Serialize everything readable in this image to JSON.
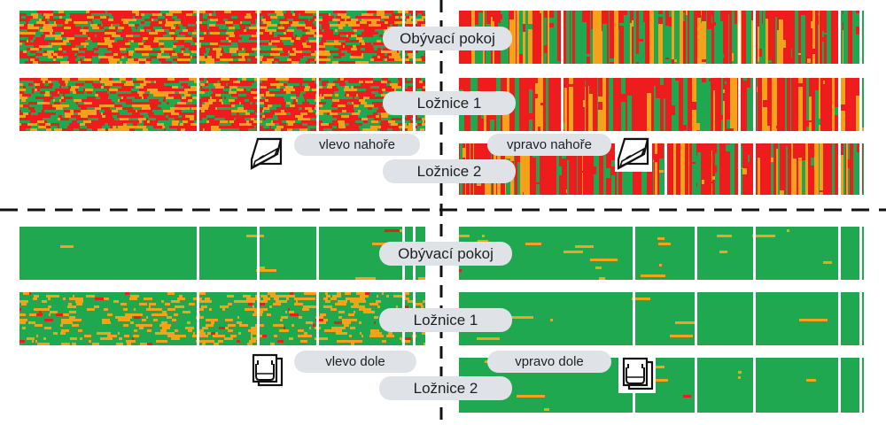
{
  "colors": {
    "good": "#1fa84f",
    "medium": "#f5a21a",
    "bad": "#ee1c1c",
    "label_bg": "#dfe3e7"
  },
  "icons": {
    "tilted_window": "tilted-window-icon",
    "open_window": "open-window-icon"
  },
  "labels": {
    "top_living": "Obývací pokoj",
    "top_bedroom1": "Ložnice 1",
    "top_bedroom2": "Ložnice 2",
    "top_left": "vlevo nahoře",
    "top_right": "vpravo nahoře",
    "bottom_living": "Obývací pokoj",
    "bottom_bedroom1": "Ložnice 1",
    "bottom_bedroom2": "Ložnice 2",
    "bottom_left": "vlevo dole",
    "bottom_right": "vpravo dole"
  }
}
